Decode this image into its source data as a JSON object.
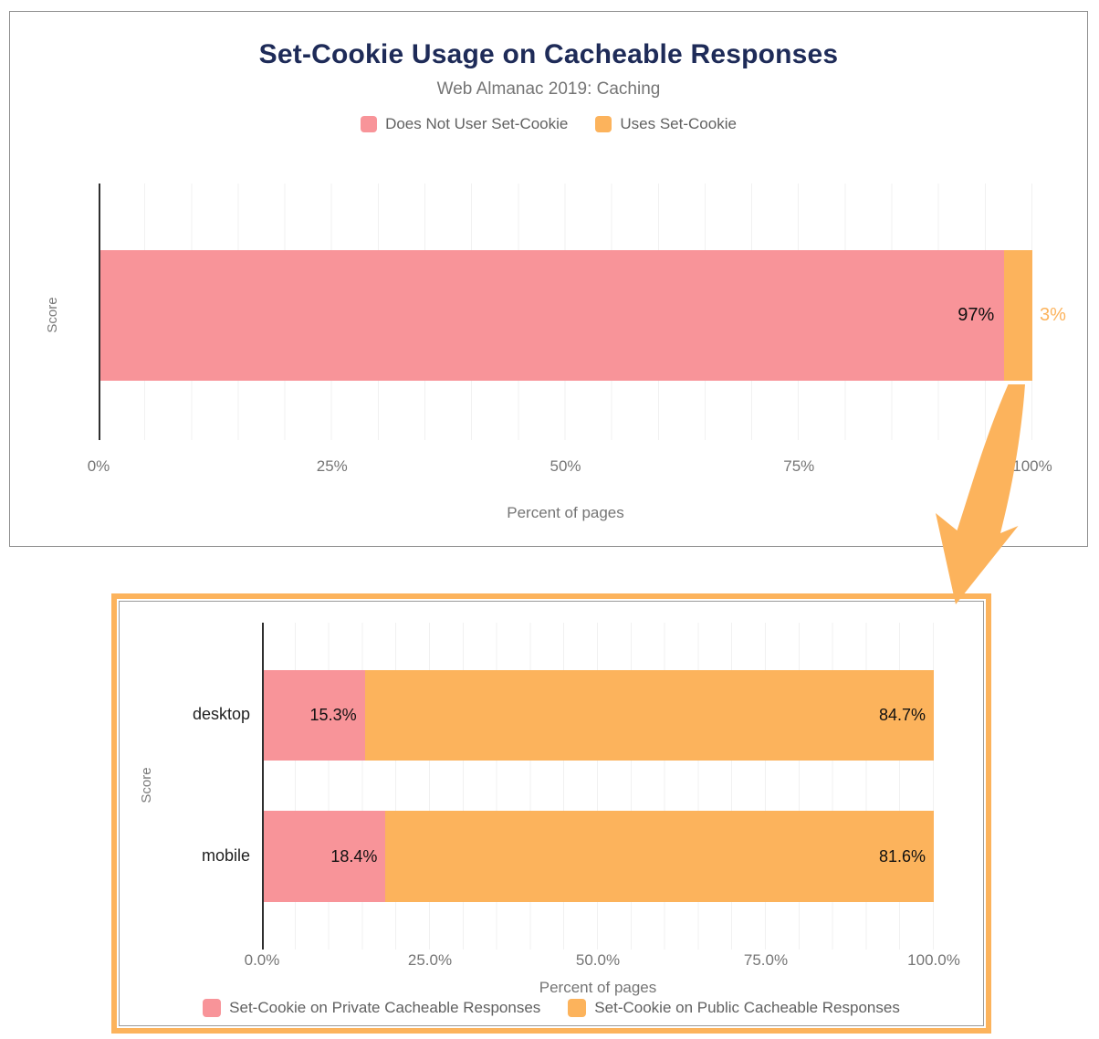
{
  "colors": {
    "pink": "#F89499",
    "orange": "#FCB35C",
    "navy": "#1E2B58",
    "tick_text": "#757575",
    "legend_text": "#616161",
    "axis_line": "#2F2F2F",
    "grid_line": "#F1F1F1",
    "top_frame_border": "#8E8E8E",
    "highlight_border": "#FCB35C",
    "data_label": "#111111"
  },
  "top_chart": {
    "title": "Set-Cookie Usage on Cacheable Responses",
    "subtitle": "Web Almanac 2019: Caching",
    "legend": [
      {
        "label": "Does Not User Set-Cookie",
        "color": "#F89499"
      },
      {
        "label": "Uses Set-Cookie",
        "color": "#FCB35C"
      }
    ],
    "y_axis_title": "Score",
    "x_axis_title": "Percent of pages",
    "x_ticks": [
      "0%",
      "25%",
      "50%",
      "75%",
      "100%"
    ],
    "segments": [
      {
        "name": "Does Not User Set-Cookie",
        "value": 97,
        "label": "97%"
      },
      {
        "name": "Uses Set-Cookie",
        "value": 3,
        "label": "3%"
      }
    ]
  },
  "bottom_chart": {
    "y_axis_title": "Score",
    "x_axis_title": "Percent of pages",
    "x_ticks": [
      "0.0%",
      "25.0%",
      "50.0%",
      "75.0%",
      "100.0%"
    ],
    "rows": [
      {
        "category": "desktop",
        "segments": [
          {
            "name": "Set-Cookie on Private Cacheable Responses",
            "value": 15.3,
            "label": "15.3%"
          },
          {
            "name": "Set-Cookie on Public Cacheable Responses",
            "value": 84.7,
            "label": "84.7%"
          }
        ]
      },
      {
        "category": "mobile",
        "segments": [
          {
            "name": "Set-Cookie on Private Cacheable Responses",
            "value": 18.4,
            "label": "18.4%"
          },
          {
            "name": "Set-Cookie on Public Cacheable Responses",
            "value": 81.6,
            "label": "81.6%"
          }
        ]
      }
    ],
    "legend": [
      {
        "label": "Set-Cookie on Private Cacheable Responses",
        "color": "#F89499"
      },
      {
        "label": "Set-Cookie on Public Cacheable Responses",
        "color": "#FCB35C"
      }
    ]
  },
  "chart_data": [
    {
      "type": "bar",
      "orientation": "horizontal",
      "stacked": true,
      "title": "Set-Cookie Usage on Cacheable Responses",
      "subtitle": "Web Almanac 2019: Caching",
      "categories": [
        "Score"
      ],
      "series": [
        {
          "name": "Does Not User Set-Cookie",
          "values": [
            97
          ],
          "color": "#F89499"
        },
        {
          "name": "Uses Set-Cookie",
          "values": [
            3
          ],
          "color": "#FCB35C"
        }
      ],
      "xlabel": "Percent of pages",
      "ylabel": "Score",
      "xlim": [
        0,
        100
      ],
      "x_tick_labels": [
        "0%",
        "25%",
        "50%",
        "75%",
        "100%"
      ],
      "legend_position": "top",
      "grid": "minor vertical gridlines every 5%"
    },
    {
      "type": "bar",
      "orientation": "horizontal",
      "stacked": true,
      "title": "",
      "categories": [
        "desktop",
        "mobile"
      ],
      "series": [
        {
          "name": "Set-Cookie on Private Cacheable Responses",
          "values": [
            15.3,
            18.4
          ],
          "color": "#F89499"
        },
        {
          "name": "Set-Cookie on Public Cacheable Responses",
          "values": [
            84.7,
            81.6
          ],
          "color": "#FCB35C"
        }
      ],
      "xlabel": "Percent of pages",
      "ylabel": "Score",
      "xlim": [
        0,
        100
      ],
      "x_tick_labels": [
        "0.0%",
        "25.0%",
        "50.0%",
        "75.0%",
        "100.0%"
      ],
      "legend_position": "bottom",
      "grid": "minor vertical gridlines every 5%",
      "annotation": "highlighted with thick orange border; arrow points from 3% sliver of top chart into this chart"
    }
  ]
}
